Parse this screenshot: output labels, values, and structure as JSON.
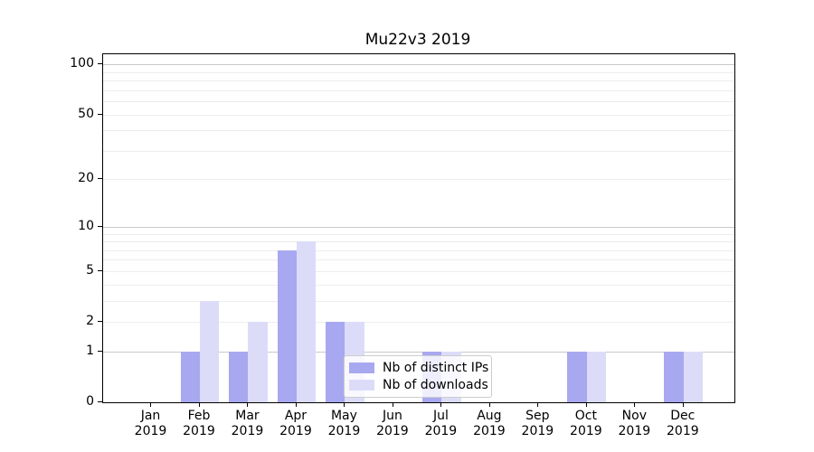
{
  "chart_data": {
    "type": "bar",
    "title": "Mu22v3 2019",
    "categories": [
      "Jan 2019",
      "Feb 2019",
      "Mar 2019",
      "Apr 2019",
      "May 2019",
      "Jun 2019",
      "Jul 2019",
      "Aug 2019",
      "Sep 2019",
      "Oct 2019",
      "Nov 2019",
      "Dec 2019"
    ],
    "series": [
      {
        "name": "Nb of distinct IPs",
        "color": "#a8a8f0",
        "values": [
          0,
          1,
          1,
          7,
          2,
          0,
          1,
          0,
          0,
          1,
          0,
          1
        ]
      },
      {
        "name": "Nb of downloads",
        "color": "#dcdcf9",
        "values": [
          0,
          3,
          2,
          8,
          2,
          0,
          1,
          0,
          0,
          1,
          0,
          1
        ]
      }
    ],
    "yscale": "log1p",
    "ylim": [
      0,
      115
    ],
    "ytick_values": [
      0,
      1,
      2,
      5,
      10,
      20,
      50,
      100
    ],
    "major_gridlines": [
      1,
      10,
      100
    ],
    "minor_gridlines": [
      2,
      3,
      4,
      5,
      6,
      7,
      8,
      9,
      20,
      30,
      40,
      50,
      60,
      70,
      80,
      90
    ],
    "grid": "on",
    "legend_position": "lower center"
  },
  "legend": {
    "items": [
      {
        "label": "Nb of distinct IPs"
      },
      {
        "label": "Nb of downloads"
      }
    ]
  },
  "colors": {
    "distinct_ips": "#a8a8f0",
    "downloads": "#dcdcf9",
    "grid_major": "#c9c9c9",
    "grid_minor": "#ededed",
    "axis": "#000000"
  }
}
